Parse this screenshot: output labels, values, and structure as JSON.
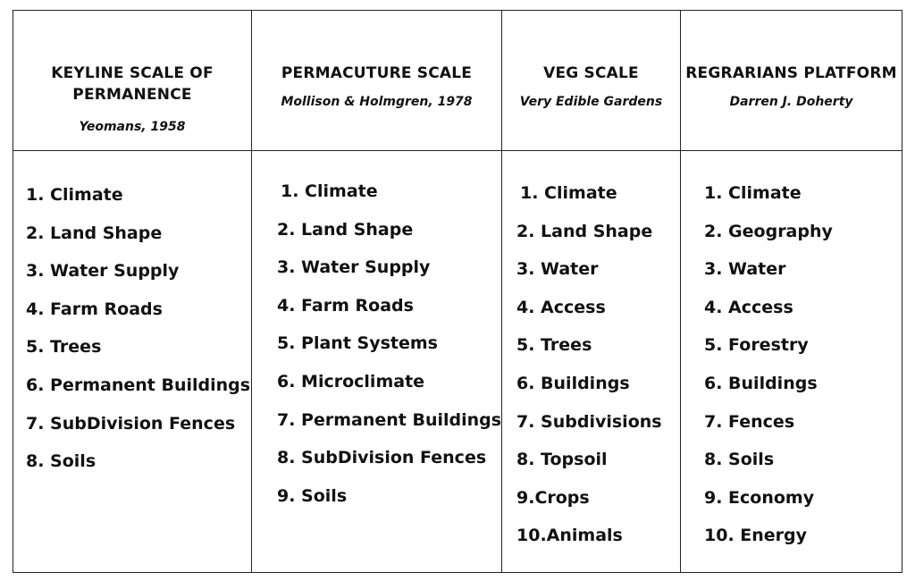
{
  "columns": [
    {
      "title": "KEYLINE SCALE OF PERMANENCE",
      "subtitle": "Yeomans, 1958",
      "items": [
        "1. Climate",
        "2. Land Shape",
        "3. Water Supply",
        "4. Farm Roads",
        "5. Trees",
        "6. Permanent Buildings",
        "7. SubDivision Fences",
        "8. Soils"
      ]
    },
    {
      "title": "PERMACUTURE SCALE",
      "subtitle": "Mollison & Holmgren, 1978",
      "items": [
        "1. Climate",
        "2. Land Shape",
        "3. Water Supply",
        "4. Farm Roads",
        "5. Plant Systems",
        "6. Microclimate",
        "7. Permanent Buildings",
        "8. SubDivision Fences",
        "9. Soils"
      ]
    },
    {
      "title": "VEG SCALE",
      "subtitle": "Very Edible Gardens",
      "items": [
        "1. Climate",
        "2. Land Shape",
        "3. Water",
        "4. Access",
        "5. Trees",
        "6. Buildings",
        "7. Subdivisions",
        "8. Topsoil",
        "9.Crops",
        "10.Animals"
      ]
    },
    {
      "title": "REGRARIANS PLATFORM",
      "subtitle": "Darren J. Doherty",
      "items": [
        "1. Climate",
        "2. Geography",
        "3. Water",
        "4. Access",
        "5. Forestry",
        "6. Buildings",
        "7. Fences",
        "8. Soils",
        "9. Economy",
        "10. Energy"
      ]
    }
  ]
}
